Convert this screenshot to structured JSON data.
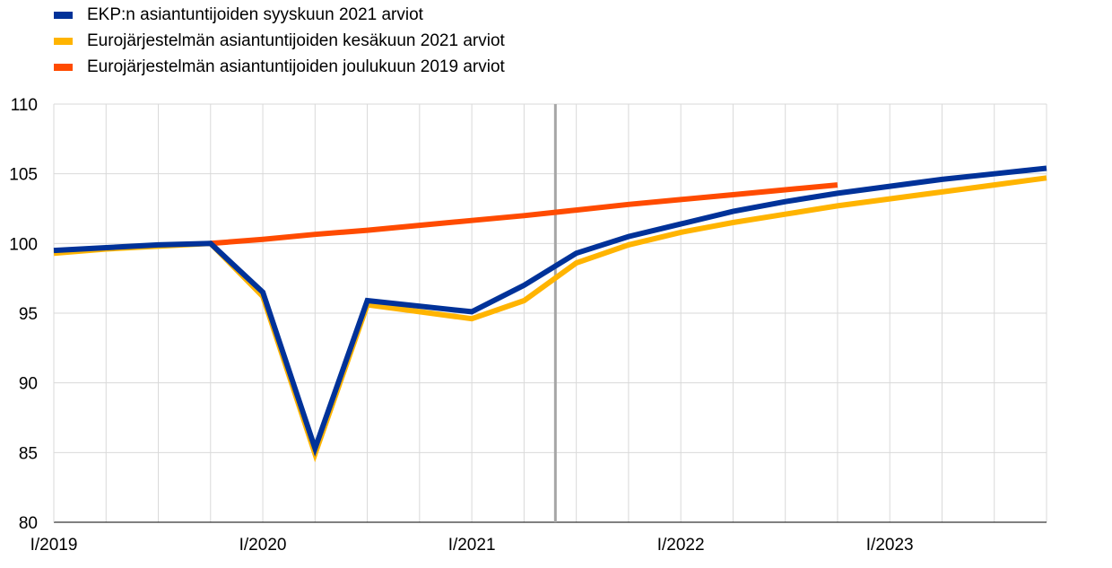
{
  "chart_data": {
    "type": "line",
    "title": "",
    "xlabel": "",
    "ylabel": "",
    "ylim": [
      80,
      110
    ],
    "yticks": [
      80,
      85,
      90,
      95,
      100,
      105,
      110
    ],
    "x": [
      "2019Q1",
      "2019Q2",
      "2019Q3",
      "2019Q4",
      "2020Q1",
      "2020Q2",
      "2020Q3",
      "2020Q4",
      "2021Q1",
      "2021Q2",
      "2021Q3",
      "2021Q4",
      "2022Q1",
      "2022Q2",
      "2022Q3",
      "2022Q4",
      "2023Q1",
      "2023Q2",
      "2023Q3",
      "2023Q4"
    ],
    "xtick_labels": [
      {
        "index": 0,
        "label": "I/2019"
      },
      {
        "index": 4,
        "label": "I/2020"
      },
      {
        "index": 8,
        "label": "I/2021"
      },
      {
        "index": 12,
        "label": "I/2022"
      },
      {
        "index": 16,
        "label": "I/2023"
      }
    ],
    "grid": true,
    "legend_position": "top-left",
    "vertical_marker_index": 9.6,
    "series": [
      {
        "name": "Eurojärjestelmän asiantuntijoiden kesäkuun 2021 arviot",
        "color": "#FFB400",
        "values": [
          99.3,
          99.6,
          99.8,
          100.0,
          96.2,
          84.9,
          95.6,
          95.1,
          94.6,
          95.9,
          98.6,
          99.9,
          100.8,
          101.5,
          102.1,
          102.7,
          103.2,
          103.7,
          104.2,
          104.7
        ]
      },
      {
        "name": "Eurojärjestelmän asiantuntijoiden joulukuun 2019 arviot",
        "color": "#FF4B00",
        "values": [
          null,
          null,
          null,
          100.0,
          100.3,
          100.65,
          100.95,
          101.3,
          101.65,
          102.0,
          102.4,
          102.8,
          103.15,
          103.5,
          103.85,
          104.2,
          null,
          null,
          null,
          null
        ]
      },
      {
        "name": "EKP:n asiantuntijoiden syyskuun 2021 arviot",
        "color": "#003299",
        "values": [
          99.5,
          99.7,
          99.9,
          100.0,
          96.5,
          85.3,
          95.9,
          95.5,
          95.1,
          97.0,
          99.3,
          100.5,
          101.4,
          102.3,
          103.0,
          103.6,
          104.1,
          104.6,
          105.0,
          105.4
        ]
      }
    ],
    "legend_order": [
      2,
      0,
      1
    ]
  }
}
